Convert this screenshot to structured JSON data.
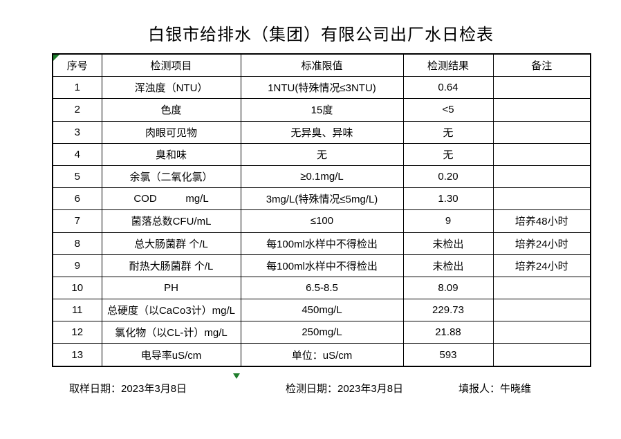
{
  "title": "白银市给排水（集团）有限公司出厂水日检表",
  "colors": {
    "grid": "#000000",
    "background": "#ffffff",
    "marker_green": "#1f7d2c"
  },
  "table": {
    "headers": [
      "序号",
      "检测项目",
      "标准限值",
      "检测结果",
      "备注"
    ],
    "rows": [
      {
        "no": "1",
        "item": "浑浊度（NTU）",
        "limit": "1NTU(特殊情况≤3NTU)",
        "result": "0.64",
        "note": ""
      },
      {
        "no": "2",
        "item": "色度",
        "limit": "15度",
        "result": "<5",
        "note": ""
      },
      {
        "no": "3",
        "item": "肉眼可见物",
        "limit": "无异臭、异味",
        "result": "无",
        "note": ""
      },
      {
        "no": "4",
        "item": "臭和味",
        "limit": "无",
        "result": "无",
        "note": ""
      },
      {
        "no": "5",
        "item": "余氯（二氧化氯）",
        "limit": "≥0.1mg/L",
        "result": "0.20",
        "note": ""
      },
      {
        "no": "6",
        "item": "COD          mg/L",
        "limit": "3mg/L(特殊情况≤5mg/L)",
        "result": "1.30",
        "note": ""
      },
      {
        "no": "7",
        "item": "菌落总数CFU/mL",
        "limit": "≤100",
        "result": "9",
        "note": "培养48小时"
      },
      {
        "no": "8",
        "item": "总大肠菌群 个/L",
        "limit": "每100ml水样中不得检出",
        "result": "未检出",
        "note": "培养24小时"
      },
      {
        "no": "9",
        "item": "耐热大肠菌群 个/L",
        "limit": "每100ml水样中不得检出",
        "result": "未检出",
        "note": "培养24小时"
      },
      {
        "no": "10",
        "item": "PH",
        "limit": "6.5-8.5",
        "result": "8.09",
        "note": ""
      },
      {
        "no": "11",
        "item": "总硬度（以CaCo3计）mg/L",
        "limit": "450mg/L",
        "result": "229.73",
        "note": ""
      },
      {
        "no": "12",
        "item": "氯化物（以CL-计）mg/L",
        "limit": "250mg/L",
        "result": "21.88",
        "note": ""
      },
      {
        "no": "13",
        "item": "电导率uS/cm",
        "limit": "单位：uS/cm",
        "result": "593",
        "note": ""
      }
    ]
  },
  "footer": {
    "sampling_date": "取样日期：2023年3月8日",
    "inspection_date": "检测日期：2023年3月8日",
    "reporter": "填报人：牛晓维"
  }
}
